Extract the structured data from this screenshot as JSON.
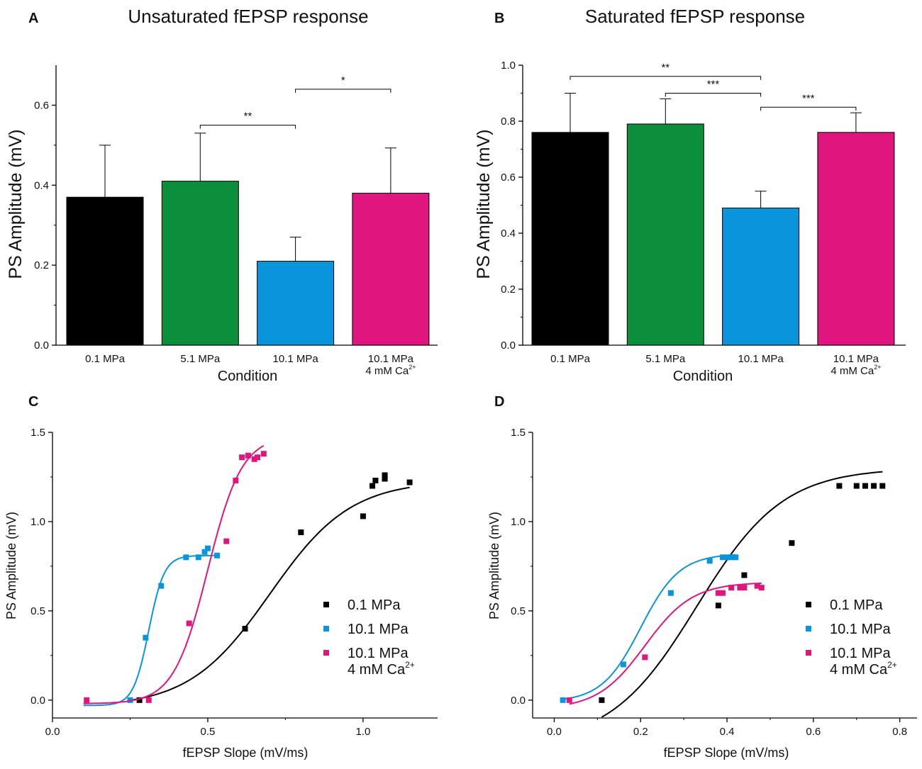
{
  "chart_data": [
    {
      "panel": "A",
      "type": "bar",
      "title": "Unsaturated fEPSP response",
      "xlabel": "Condition",
      "ylabel": "PS Amplitude (mV)",
      "ylim": [
        0,
        0.7
      ],
      "yticks": [
        0.0,
        0.2,
        0.4,
        0.6
      ],
      "ytick_labels": [
        "0.0",
        "0.2",
        "0.4",
        "0.6"
      ],
      "categories": [
        {
          "line1": "0.1 MPa",
          "line2": "",
          "sup": ""
        },
        {
          "line1": "5.1 MPa",
          "line2": "",
          "sup": ""
        },
        {
          "line1": "10.1 MPa",
          "line2": "",
          "sup": ""
        },
        {
          "line1": "10.1 MPa",
          "line2": "4 mM Ca",
          "sup": "2+"
        }
      ],
      "values": [
        0.37,
        0.41,
        0.21,
        0.38
      ],
      "errors": [
        0.13,
        0.12,
        0.06,
        0.113
      ],
      "colors": [
        "#000000",
        "#0b8f3c",
        "#0a94db",
        "#e0157e"
      ],
      "significance": [
        {
          "from": 1,
          "to": 2,
          "y": 0.55,
          "label": "**"
        },
        {
          "from": 2,
          "to": 3,
          "y": 0.64,
          "label": "*"
        }
      ]
    },
    {
      "panel": "B",
      "type": "bar",
      "title": "Saturated fEPSP response",
      "xlabel": "Condition",
      "ylabel": "PS Amplitude (mV)",
      "ylim": [
        0,
        1.0
      ],
      "yticks": [
        0.0,
        0.2,
        0.4,
        0.6,
        0.8,
        1.0
      ],
      "ytick_labels": [
        "0.0",
        "0.2",
        "0.4",
        "0.6",
        "0.8",
        "1.0"
      ],
      "categories": [
        {
          "line1": "0.1 MPa",
          "line2": "",
          "sup": ""
        },
        {
          "line1": "5.1 MPa",
          "line2": "",
          "sup": ""
        },
        {
          "line1": "10.1 MPa",
          "line2": "",
          "sup": ""
        },
        {
          "line1": "10.1 MPa",
          "line2": "4 mM Ca",
          "sup": "2+"
        }
      ],
      "values": [
        0.76,
        0.79,
        0.49,
        0.76
      ],
      "errors": [
        0.14,
        0.09,
        0.06,
        0.07
      ],
      "colors": [
        "#000000",
        "#0b8f3c",
        "#0a94db",
        "#e0157e"
      ],
      "significance": [
        {
          "from": 0,
          "to": 2,
          "y": 0.96,
          "label": "**"
        },
        {
          "from": 1,
          "to": 2,
          "y": 0.9,
          "label": "***"
        },
        {
          "from": 2,
          "to": 3,
          "y": 0.85,
          "label": "***"
        }
      ]
    },
    {
      "panel": "C",
      "type": "scatter",
      "xlabel": "fEPSP Slope (mV/ms)",
      "ylabel": "PS Amplitude (mV)",
      "xlim": [
        0.0,
        1.24
      ],
      "ylim": [
        -0.1,
        1.5
      ],
      "xticks": [
        0.0,
        0.5,
        1.0
      ],
      "xtick_labels": [
        "0.0",
        "0.5",
        "1.0"
      ],
      "yticks": [
        0.0,
        0.5,
        1.0,
        1.5
      ],
      "ytick_labels": [
        "0.0",
        "0.5",
        "1.0",
        "1.5"
      ],
      "series": [
        {
          "name": "0.1 MPa",
          "name_line2": "",
          "sup": "",
          "color": "#000000",
          "points": [
            [
              0.28,
              0.0
            ],
            [
              0.62,
              0.4
            ],
            [
              0.8,
              0.94
            ],
            [
              1.0,
              1.03
            ],
            [
              1.03,
              1.2
            ],
            [
              1.04,
              1.23
            ],
            [
              1.07,
              1.25
            ],
            [
              1.07,
              1.26
            ],
            [
              1.07,
              1.24
            ],
            [
              1.15,
              1.22
            ]
          ],
          "fit": {
            "min": -0.04,
            "max": 1.23,
            "x50": 0.7,
            "k": 0.13,
            "x_from": 0.26,
            "x_to": 1.15
          }
        },
        {
          "name": "10.1 MPa",
          "name_line2": "",
          "sup": "",
          "color": "#0a94db",
          "points": [
            [
              0.25,
              0.0
            ],
            [
              0.3,
              0.35
            ],
            [
              0.35,
              0.64
            ],
            [
              0.43,
              0.8
            ],
            [
              0.47,
              0.8
            ],
            [
              0.49,
              0.83
            ],
            [
              0.5,
              0.85
            ],
            [
              0.53,
              0.81
            ]
          ],
          "fit": {
            "min": -0.03,
            "max": 0.81,
            "x50": 0.31,
            "k": 0.025,
            "x_from": 0.1,
            "x_to": 0.53
          }
        },
        {
          "name": "10.1 MPa",
          "name_line2": "4 mM Ca",
          "sup": "2+",
          "color": "#e0157e",
          "points": [
            [
              0.11,
              0.0
            ],
            [
              0.31,
              0.0
            ],
            [
              0.44,
              0.43
            ],
            [
              0.56,
              0.89
            ],
            [
              0.59,
              1.23
            ],
            [
              0.61,
              1.36
            ],
            [
              0.63,
              1.37
            ],
            [
              0.65,
              1.35
            ],
            [
              0.66,
              1.36
            ],
            [
              0.68,
              1.38
            ]
          ],
          "fit": {
            "min": -0.02,
            "max": 1.48,
            "x50": 0.5,
            "k": 0.055,
            "x_from": 0.1,
            "x_to": 0.68
          }
        }
      ]
    },
    {
      "panel": "D",
      "type": "scatter",
      "xlabel": "fEPSP Slope (mV/ms)",
      "ylabel": "PS Amplitude (mV)",
      "xlim": [
        -0.05,
        0.84
      ],
      "ylim": [
        -0.1,
        1.5
      ],
      "xticks": [
        0.0,
        0.2,
        0.4,
        0.6,
        0.8
      ],
      "xtick_labels": [
        "0.0",
        "0.2",
        "0.4",
        "0.6",
        "0.8"
      ],
      "yticks": [
        0.0,
        0.5,
        1.0,
        1.5
      ],
      "ytick_labels": [
        "0.0",
        "0.5",
        "1.0",
        "1.5"
      ],
      "series": [
        {
          "name": "0.1 MPa",
          "name_line2": "",
          "sup": "",
          "color": "#000000",
          "points": [
            [
              0.11,
              0.0
            ],
            [
              0.38,
              0.53
            ],
            [
              0.44,
              0.7
            ],
            [
              0.55,
              0.88
            ],
            [
              0.66,
              1.2
            ],
            [
              0.7,
              1.2
            ],
            [
              0.72,
              1.2
            ],
            [
              0.74,
              1.2
            ],
            [
              0.76,
              1.2
            ]
          ],
          "fit": {
            "min": -0.25,
            "max": 1.3,
            "x50": 0.33,
            "k": 0.1,
            "x_from": 0.11,
            "x_to": 0.76
          }
        },
        {
          "name": "10.1 MPa",
          "name_line2": "",
          "sup": "",
          "color": "#0a94db",
          "points": [
            [
              0.02,
              0.0
            ],
            [
              0.16,
              0.2
            ],
            [
              0.27,
              0.6
            ],
            [
              0.36,
              0.78
            ],
            [
              0.39,
              0.8
            ],
            [
              0.4,
              0.8
            ],
            [
              0.41,
              0.8
            ],
            [
              0.42,
              0.8
            ]
          ],
          "fit": {
            "min": -0.01,
            "max": 0.82,
            "x50": 0.2,
            "k": 0.045,
            "x_from": 0.02,
            "x_to": 0.42
          }
        },
        {
          "name": "10.1 MPa",
          "name_line2": "4 mM Ca",
          "sup": "2+",
          "color": "#e0157e",
          "points": [
            [
              0.035,
              0.0
            ],
            [
              0.21,
              0.24
            ],
            [
              0.38,
              0.6
            ],
            [
              0.39,
              0.6
            ],
            [
              0.41,
              0.63
            ],
            [
              0.43,
              0.63
            ],
            [
              0.44,
              0.63
            ],
            [
              0.47,
              0.64
            ],
            [
              0.48,
              0.63
            ]
          ],
          "fit": {
            "min": -0.05,
            "max": 0.66,
            "x50": 0.21,
            "k": 0.055,
            "x_from": 0.035,
            "x_to": 0.48
          }
        }
      ]
    }
  ]
}
